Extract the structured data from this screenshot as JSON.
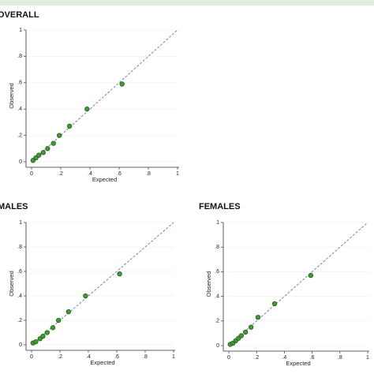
{
  "chart_data": [
    {
      "type": "scatter",
      "title": "OVERALL",
      "x_label": "Expected",
      "y_label": "Observed",
      "color": "#3f9d2f",
      "x": [
        0.01,
        0.03,
        0.05,
        0.08,
        0.11,
        0.15,
        0.19,
        0.26,
        0.38,
        0.62
      ],
      "values": [
        0.01,
        0.03,
        0.05,
        0.07,
        0.1,
        0.14,
        0.2,
        0.27,
        0.4,
        0.59
      ],
      "xlim": [
        0,
        1
      ],
      "ylim": [
        0,
        1
      ],
      "xticks": [
        0,
        {
          "value": 0.2,
          "label": ".2"
        },
        {
          "value": 0.4,
          "label": ".4"
        },
        {
          "value": 0.6,
          "label": ".6"
        },
        {
          "value": 0.8,
          "label": ".8"
        },
        1
      ],
      "yticks": [
        0,
        {
          "value": 0.2,
          "label": ".2"
        },
        {
          "value": 0.4,
          "label": ".4"
        },
        {
          "value": 0.6,
          "label": ".6"
        },
        {
          "value": 0.8,
          "label": ".8"
        },
        1
      ]
    },
    {
      "type": "scatter",
      "title": "MALES",
      "x_label": "Expected",
      "y_label": "Observed",
      "color": "#3f9d2f",
      "x": [
        0.01,
        0.03,
        0.06,
        0.08,
        0.11,
        0.15,
        0.19,
        0.26,
        0.38,
        0.62
      ],
      "values": [
        0.015,
        0.025,
        0.05,
        0.07,
        0.1,
        0.14,
        0.2,
        0.27,
        0.4,
        0.58
      ],
      "xlim": [
        0,
        1
      ],
      "ylim": [
        0,
        1
      ],
      "xticks": [
        0,
        {
          "value": 0.2,
          "label": ".2"
        },
        {
          "value": 0.4,
          "label": ".4"
        },
        {
          "value": 0.6,
          "label": ".6"
        },
        {
          "value": 0.8,
          "label": ".8"
        },
        1
      ],
      "yticks": [
        0,
        {
          "value": 0.2,
          "label": ".2"
        },
        {
          "value": 0.4,
          "label": ".4"
        },
        {
          "value": 0.6,
          "label": ".6"
        },
        {
          "value": 0.8,
          "label": ".8"
        },
        1
      ]
    },
    {
      "type": "scatter",
      "title": "FEMALES",
      "x_label": "Expected",
      "y_label": "Observed",
      "color": "#3f9d2f",
      "x": [
        0.01,
        0.03,
        0.05,
        0.07,
        0.09,
        0.12,
        0.16,
        0.21,
        0.33,
        0.59
      ],
      "values": [
        0.01,
        0.02,
        0.04,
        0.06,
        0.08,
        0.11,
        0.15,
        0.23,
        0.34,
        0.57
      ],
      "xlim": [
        0,
        1
      ],
      "ylim": [
        0,
        1
      ],
      "xticks": [
        0,
        {
          "value": 0.2,
          "label": ".2"
        },
        {
          "value": 0.4,
          "label": ".4"
        },
        {
          "value": 0.6,
          "label": ".6"
        },
        {
          "value": 0.8,
          "label": ".8"
        },
        1
      ],
      "yticks": [
        0,
        {
          "value": 0.2,
          "label": ".2"
        },
        {
          "value": 0.4,
          "label": ".4"
        },
        {
          "value": 0.6,
          "label": ".6"
        },
        {
          "value": 0.8,
          "label": ".8"
        },
        1
      ]
    }
  ]
}
